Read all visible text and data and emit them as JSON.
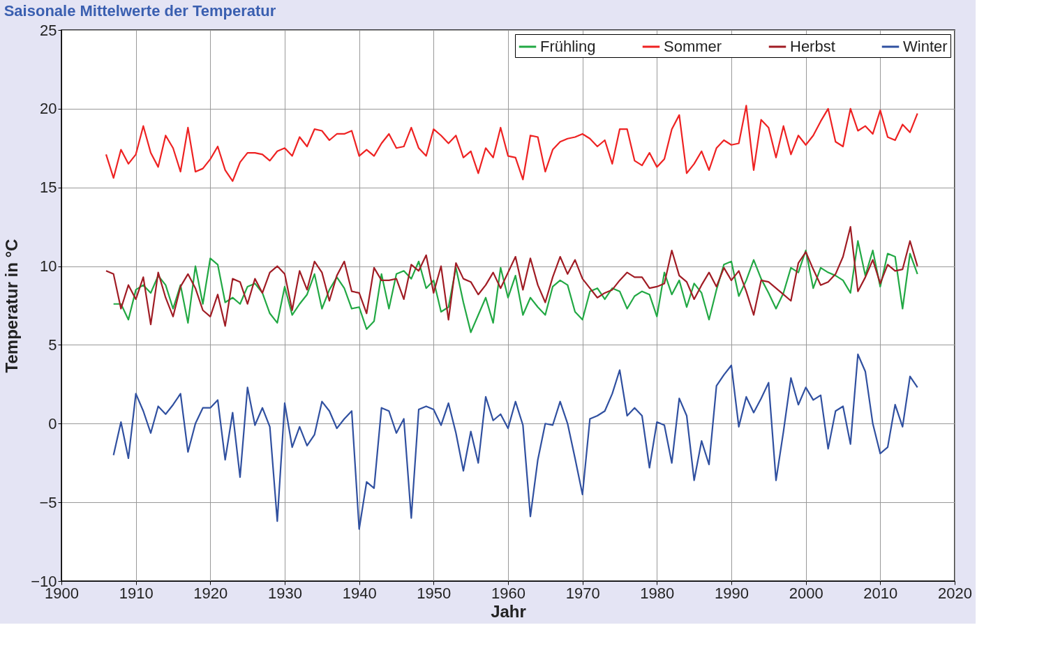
{
  "chart_data": {
    "type": "line",
    "title": "Saisonale Mittelwerte der Temperatur",
    "xlabel": "Jahr",
    "ylabel": "Temperatur in °C",
    "xlim": [
      1900,
      2020
    ],
    "xticks": [
      1900,
      1910,
      1920,
      1930,
      1940,
      1950,
      1960,
      1970,
      1980,
      1990,
      2000,
      2010,
      2020
    ],
    "ylim": [
      -10,
      25
    ],
    "yticks": [
      -10,
      -5,
      0,
      5,
      10,
      15,
      20,
      25
    ],
    "grid": true,
    "legend": "top right",
    "line_style": "solid",
    "marker": "none",
    "series": [
      {
        "name": "Frühling",
        "color": "#22a844",
        "x": [
          1907,
          1908,
          1909,
          1910,
          1911,
          1912,
          1913,
          1914,
          1915,
          1916,
          1917,
          1918,
          1919,
          1920,
          1921,
          1922,
          1923,
          1924,
          1925,
          1926,
          1927,
          1928,
          1929,
          1930,
          1931,
          1932,
          1933,
          1934,
          1935,
          1936,
          1937,
          1938,
          1939,
          1940,
          1941,
          1942,
          1943,
          1944,
          1945,
          1946,
          1947,
          1948,
          1949,
          1950,
          1951,
          1952,
          1953,
          1954,
          1955,
          1956,
          1957,
          1958,
          1959,
          1960,
          1961,
          1962,
          1963,
          1964,
          1965,
          1966,
          1967,
          1968,
          1969,
          1970,
          1971,
          1972,
          1973,
          1974,
          1975,
          1976,
          1977,
          1978,
          1979,
          1980,
          1981,
          1982,
          1983,
          1984,
          1985,
          1986,
          1987,
          1988,
          1989,
          1990,
          1991,
          1992,
          1993,
          1994,
          1995,
          1996,
          1997,
          1998,
          1999,
          2000,
          2001,
          2002,
          2003,
          2004,
          2005,
          2006,
          2007,
          2008,
          2009,
          2010,
          2011,
          2012,
          2013,
          2014,
          2015
        ],
        "values": [
          7.6,
          7.6,
          6.6,
          8.5,
          8.8,
          8.3,
          9.4,
          8.8,
          7.3,
          8.8,
          6.4,
          10.0,
          7.6,
          10.5,
          10.1,
          7.7,
          8.0,
          7.6,
          8.7,
          8.9,
          8.3,
          7.0,
          6.4,
          8.7,
          6.9,
          7.6,
          8.2,
          9.5,
          7.3,
          8.5,
          9.3,
          8.6,
          7.3,
          7.4,
          6.0,
          6.5,
          9.5,
          7.3,
          9.5,
          9.7,
          9.2,
          10.3,
          8.6,
          9.1,
          7.1,
          7.4,
          9.9,
          7.7,
          5.8,
          6.9,
          8.0,
          6.4,
          9.9,
          8.0,
          9.4,
          6.9,
          8.0,
          7.4,
          6.9,
          8.7,
          9.1,
          8.8,
          7.1,
          6.6,
          8.4,
          8.6,
          7.9,
          8.6,
          8.4,
          7.3,
          8.1,
          8.4,
          8.2,
          6.8,
          9.6,
          8.2,
          9.1,
          7.4,
          8.9,
          8.3,
          6.6,
          8.5,
          10.1,
          10.3,
          8.1,
          9.1,
          10.4,
          9.2,
          8.3,
          7.3,
          8.3,
          9.9,
          9.6,
          11.0,
          8.6,
          9.9,
          9.6,
          9.4,
          9.1,
          8.3,
          11.6,
          9.4,
          11.0,
          8.7,
          10.8,
          10.6,
          7.3,
          10.8,
          9.5
        ]
      },
      {
        "name": "Sommer",
        "color": "#ee2222",
        "x": [
          1906,
          1907,
          1908,
          1909,
          1910,
          1911,
          1912,
          1913,
          1914,
          1915,
          1916,
          1917,
          1918,
          1919,
          1920,
          1921,
          1922,
          1923,
          1924,
          1925,
          1926,
          1927,
          1928,
          1929,
          1930,
          1931,
          1932,
          1933,
          1934,
          1935,
          1936,
          1937,
          1938,
          1939,
          1940,
          1941,
          1942,
          1943,
          1944,
          1945,
          1946,
          1947,
          1948,
          1949,
          1950,
          1951,
          1952,
          1953,
          1954,
          1955,
          1956,
          1957,
          1958,
          1959,
          1960,
          1961,
          1962,
          1963,
          1964,
          1965,
          1966,
          1967,
          1968,
          1969,
          1970,
          1971,
          1972,
          1973,
          1974,
          1975,
          1976,
          1977,
          1978,
          1979,
          1980,
          1981,
          1982,
          1983,
          1984,
          1985,
          1986,
          1987,
          1988,
          1989,
          1990,
          1991,
          1992,
          1993,
          1994,
          1995,
          1996,
          1997,
          1998,
          1999,
          2000,
          2001,
          2002,
          2003,
          2004,
          2005,
          2006,
          2007,
          2008,
          2009,
          2010,
          2011,
          2012,
          2013,
          2014,
          2015
        ],
        "values": [
          17.1,
          15.6,
          17.4,
          16.5,
          17.1,
          18.9,
          17.2,
          16.3,
          18.3,
          17.5,
          16.0,
          18.8,
          16.0,
          16.2,
          16.8,
          17.6,
          16.1,
          15.4,
          16.6,
          17.2,
          17.2,
          17.1,
          16.7,
          17.3,
          17.5,
          17.0,
          18.2,
          17.6,
          18.7,
          18.6,
          18.0,
          18.4,
          18.4,
          18.6,
          17.0,
          17.4,
          17.0,
          17.8,
          18.4,
          17.5,
          17.6,
          18.8,
          17.5,
          17.0,
          18.7,
          18.3,
          17.8,
          18.3,
          16.9,
          17.3,
          15.9,
          17.5,
          16.9,
          18.8,
          17.0,
          16.9,
          15.5,
          18.3,
          18.2,
          16.0,
          17.4,
          17.9,
          18.1,
          18.2,
          18.4,
          18.1,
          17.6,
          18.0,
          16.5,
          18.7,
          18.7,
          16.7,
          16.4,
          17.2,
          16.3,
          16.8,
          18.7,
          19.6,
          15.9,
          16.5,
          17.3,
          16.1,
          17.5,
          18.0,
          17.7,
          17.8,
          20.2,
          16.1,
          19.3,
          18.8,
          16.9,
          18.9,
          17.1,
          18.3,
          17.7,
          18.3,
          19.2,
          20.0,
          17.9,
          17.6,
          20.0,
          18.6,
          18.9,
          18.4,
          19.9,
          18.2,
          18.0,
          19.0,
          18.5,
          19.7
        ]
      },
      {
        "name": "Herbst",
        "color": "#a01c24",
        "x": [
          1906,
          1907,
          1908,
          1909,
          1910,
          1911,
          1912,
          1913,
          1914,
          1915,
          1916,
          1917,
          1918,
          1919,
          1920,
          1921,
          1922,
          1923,
          1924,
          1925,
          1926,
          1927,
          1928,
          1929,
          1930,
          1931,
          1932,
          1933,
          1934,
          1935,
          1936,
          1937,
          1938,
          1939,
          1940,
          1941,
          1942,
          1943,
          1944,
          1945,
          1946,
          1947,
          1948,
          1949,
          1950,
          1951,
          1952,
          1953,
          1954,
          1955,
          1956,
          1957,
          1958,
          1959,
          1960,
          1961,
          1962,
          1963,
          1964,
          1965,
          1966,
          1967,
          1968,
          1969,
          1970,
          1971,
          1972,
          1973,
          1974,
          1975,
          1976,
          1977,
          1978,
          1979,
          1980,
          1981,
          1982,
          1983,
          1984,
          1985,
          1986,
          1987,
          1988,
          1989,
          1990,
          1991,
          1992,
          1993,
          1994,
          1995,
          1996,
          1997,
          1998,
          1999,
          2000,
          2001,
          2002,
          2003,
          2004,
          2005,
          2006,
          2007,
          2008,
          2009,
          2010,
          2011,
          2012,
          2013,
          2014,
          2015
        ],
        "values": [
          9.7,
          9.5,
          7.3,
          8.8,
          7.9,
          9.3,
          6.3,
          9.6,
          8.0,
          6.8,
          8.7,
          9.5,
          8.6,
          7.2,
          6.8,
          8.2,
          6.2,
          9.2,
          9.0,
          7.6,
          9.2,
          8.3,
          9.6,
          10.0,
          9.5,
          7.2,
          9.7,
          8.5,
          10.3,
          9.6,
          7.8,
          9.4,
          10.3,
          8.4,
          8.3,
          7.0,
          9.9,
          9.1,
          9.1,
          9.2,
          7.9,
          10.1,
          9.7,
          10.7,
          8.3,
          10.0,
          6.6,
          10.2,
          9.2,
          9.0,
          8.2,
          8.8,
          9.6,
          8.6,
          9.6,
          10.6,
          8.5,
          10.5,
          8.8,
          7.7,
          9.3,
          10.6,
          9.5,
          10.4,
          9.2,
          8.6,
          8.0,
          8.3,
          8.5,
          9.1,
          9.6,
          9.3,
          9.3,
          8.6,
          8.7,
          8.9,
          11.0,
          9.4,
          9.0,
          7.9,
          8.8,
          9.6,
          8.7,
          9.9,
          9.1,
          9.7,
          8.4,
          6.9,
          9.1,
          9.0,
          8.6,
          8.2,
          7.8,
          10.2,
          10.9,
          9.8,
          8.8,
          9.0,
          9.5,
          10.6,
          12.5,
          8.4,
          9.3,
          10.4,
          8.9,
          10.1,
          9.7,
          9.8,
          11.6,
          10.0
        ]
      },
      {
        "name": "Winter",
        "color": "#3050a0",
        "x": [
          1907,
          1908,
          1909,
          1910,
          1911,
          1912,
          1913,
          1914,
          1915,
          1916,
          1917,
          1918,
          1919,
          1920,
          1921,
          1922,
          1923,
          1924,
          1925,
          1926,
          1927,
          1928,
          1929,
          1930,
          1931,
          1932,
          1933,
          1934,
          1935,
          1936,
          1937,
          1938,
          1939,
          1940,
          1941,
          1942,
          1943,
          1944,
          1945,
          1946,
          1947,
          1948,
          1949,
          1950,
          1951,
          1952,
          1953,
          1954,
          1955,
          1956,
          1957,
          1958,
          1959,
          1960,
          1961,
          1962,
          1963,
          1964,
          1965,
          1966,
          1967,
          1968,
          1969,
          1970,
          1971,
          1972,
          1973,
          1974,
          1975,
          1976,
          1977,
          1978,
          1979,
          1980,
          1981,
          1982,
          1983,
          1984,
          1985,
          1986,
          1987,
          1988,
          1989,
          1990,
          1991,
          1992,
          1993,
          1994,
          1995,
          1996,
          1997,
          1998,
          1999,
          2000,
          2001,
          2002,
          2003,
          2004,
          2005,
          2006,
          2007,
          2008,
          2009,
          2010,
          2011,
          2012,
          2013,
          2014,
          2015
        ],
        "values": [
          -2.0,
          0.1,
          -2.2,
          1.9,
          0.8,
          -0.6,
          1.1,
          0.6,
          1.2,
          1.9,
          -1.8,
          0.0,
          1.0,
          1.0,
          1.5,
          -2.3,
          0.7,
          -3.4,
          2.3,
          -0.1,
          1.0,
          -0.2,
          -6.2,
          1.3,
          -1.5,
          -0.2,
          -1.4,
          -0.7,
          1.4,
          0.8,
          -0.3,
          0.3,
          0.8,
          -6.7,
          -3.7,
          -4.1,
          1.0,
          0.8,
          -0.6,
          0.3,
          -6.0,
          0.9,
          1.1,
          0.9,
          -0.1,
          1.3,
          -0.6,
          -3.0,
          -0.5,
          -2.5,
          1.7,
          0.2,
          0.6,
          -0.3,
          1.4,
          -0.1,
          -5.9,
          -2.3,
          0.0,
          -0.1,
          1.4,
          0.0,
          -2.2,
          -4.5,
          0.3,
          0.5,
          0.8,
          1.9,
          3.4,
          0.5,
          1.0,
          0.5,
          -2.8,
          0.1,
          -0.1,
          -2.5,
          1.6,
          0.5,
          -3.6,
          -1.1,
          -2.6,
          2.4,
          3.1,
          3.7,
          -0.2,
          1.7,
          0.7,
          1.6,
          2.6,
          -3.6,
          -0.5,
          2.9,
          1.2,
          2.3,
          1.5,
          1.8,
          -1.6,
          0.8,
          1.1,
          -1.3,
          4.4,
          3.3,
          0.0,
          -1.9,
          -1.5,
          1.2,
          -0.2,
          3.0,
          2.3
        ]
      }
    ]
  }
}
